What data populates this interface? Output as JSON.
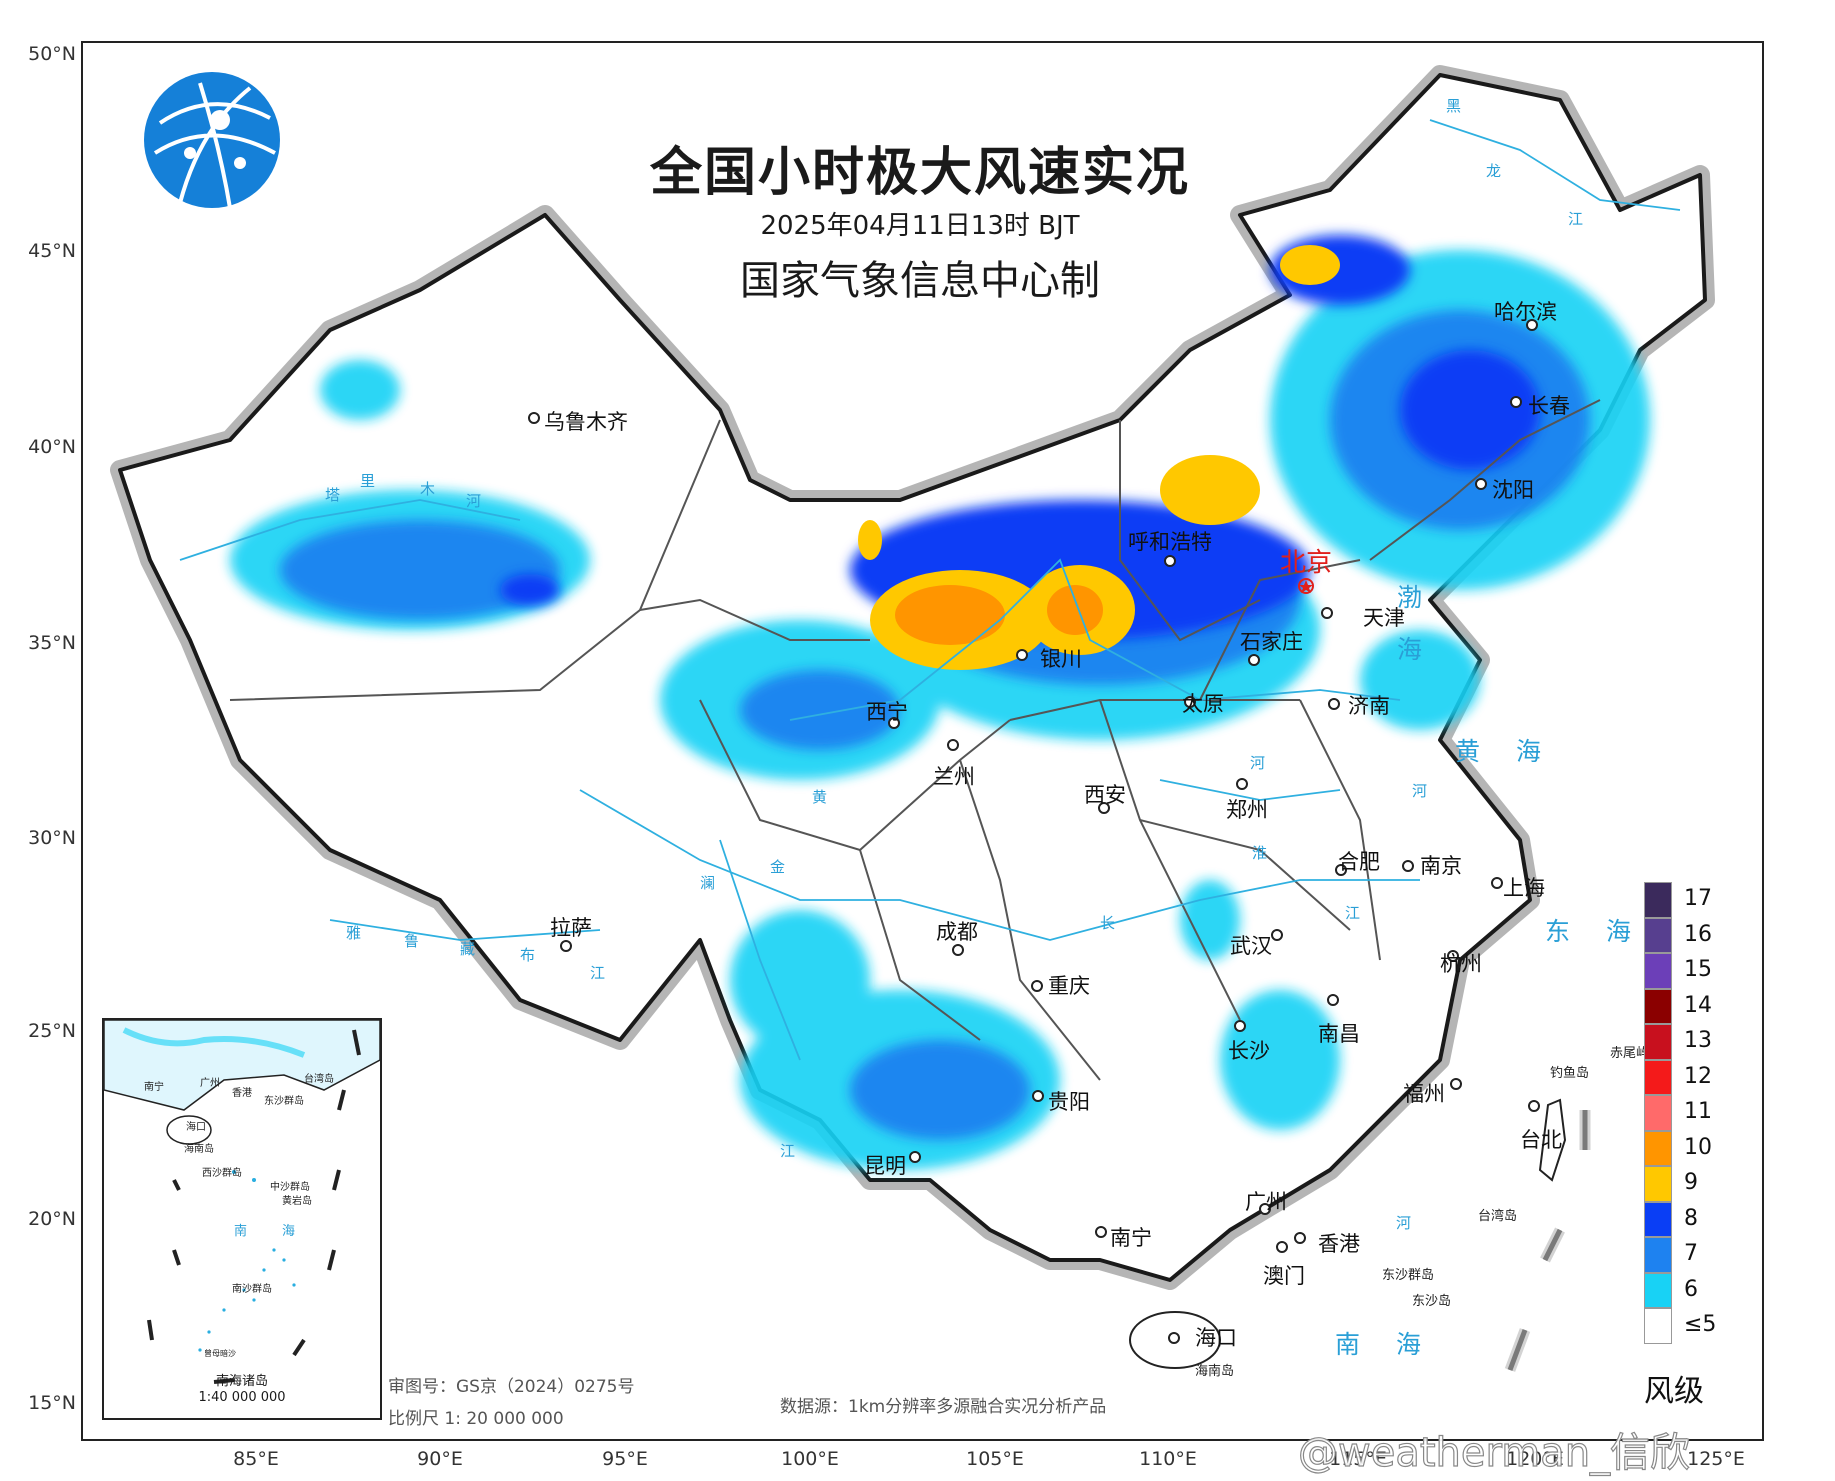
{
  "title": "全国小时极大风速实况",
  "subtitle": "2025年04月11日13时 BJT",
  "maker": "国家气象信息中心制",
  "lat_labels": [
    "50°N",
    "45°N",
    "40°N",
    "35°N",
    "30°N",
    "25°N",
    "20°N",
    "15°N"
  ],
  "lon_labels": [
    "85°E",
    "90°E",
    "95°E",
    "100°E",
    "105°E",
    "110°E",
    "115°E",
    "120°E",
    "125°E"
  ],
  "cities": [
    {
      "name": "乌鲁木齐"
    },
    {
      "name": "呼和浩特"
    },
    {
      "name": "北京"
    },
    {
      "name": "天津"
    },
    {
      "name": "石家庄"
    },
    {
      "name": "银川"
    },
    {
      "name": "太原"
    },
    {
      "name": "济南"
    },
    {
      "name": "西宁"
    },
    {
      "name": "兰州"
    },
    {
      "name": "西安"
    },
    {
      "name": "郑州"
    },
    {
      "name": "哈尔滨"
    },
    {
      "name": "长春"
    },
    {
      "name": "沈阳"
    },
    {
      "name": "合肥"
    },
    {
      "name": "南京"
    },
    {
      "name": "上海"
    },
    {
      "name": "拉萨"
    },
    {
      "name": "成都"
    },
    {
      "name": "武汉"
    },
    {
      "name": "杭州"
    },
    {
      "name": "重庆"
    },
    {
      "name": "南昌"
    },
    {
      "name": "长沙"
    },
    {
      "name": "贵阳"
    },
    {
      "name": "福州"
    },
    {
      "name": "台北"
    },
    {
      "name": "昆明"
    },
    {
      "name": "广州"
    },
    {
      "name": "南宁"
    },
    {
      "name": "香港"
    },
    {
      "name": "澳门"
    },
    {
      "name": "海口"
    }
  ],
  "islands": [
    "钓鱼岛",
    "赤尾屿",
    "台湾岛",
    "东沙群岛",
    "东沙岛",
    "海南岛"
  ],
  "seas": {
    "bohai_1": "渤",
    "bohai_2": "海",
    "huanghai": "黄 海",
    "donghai": "东 海",
    "nanhai": "南 海"
  },
  "rivers": [
    "塔",
    "里",
    "木",
    "河",
    "黄",
    "河",
    "长",
    "江",
    "淮",
    "河",
    "雅",
    "鲁",
    "藏",
    "布",
    "江",
    "澜",
    "金",
    "江",
    "河",
    "黑",
    "龙",
    "江"
  ],
  "inset": {
    "title": "南海诸岛",
    "scale": "1:40 000 000",
    "labels": [
      "南宁",
      "广州",
      "台湾岛",
      "香港",
      "东沙群岛",
      "海口",
      "海南岛",
      "西沙群岛",
      "中沙群岛",
      "黄岩岛",
      "南",
      "海",
      "南沙群岛",
      "曾母暗沙"
    ]
  },
  "review_no": "审图号：GS京（2024）0275号",
  "scale": "比例尺 1: 20 000 000",
  "source": "数据源：1km分辨率多源融合实况分析产品",
  "legend": {
    "title": "风级",
    "items": [
      {
        "label": "17",
        "color": "#3b2a5c"
      },
      {
        "label": "16",
        "color": "#573f8f"
      },
      {
        "label": "15",
        "color": "#6c3fb8"
      },
      {
        "label": "14",
        "color": "#8b0000"
      },
      {
        "label": "13",
        "color": "#c8101e"
      },
      {
        "label": "12",
        "color": "#f41a1a"
      },
      {
        "label": "11",
        "color": "#ff6a6a"
      },
      {
        "label": "10",
        "color": "#ff9500"
      },
      {
        "label": "9",
        "color": "#ffc800"
      },
      {
        "label": "8",
        "color": "#0a3ef5"
      },
      {
        "label": "7",
        "color": "#1e82f0"
      },
      {
        "label": "6",
        "color": "#18d2f5"
      },
      {
        "label": "≤5",
        "color": "#ffffff"
      }
    ]
  },
  "watermark": "@weatherman_信欣"
}
